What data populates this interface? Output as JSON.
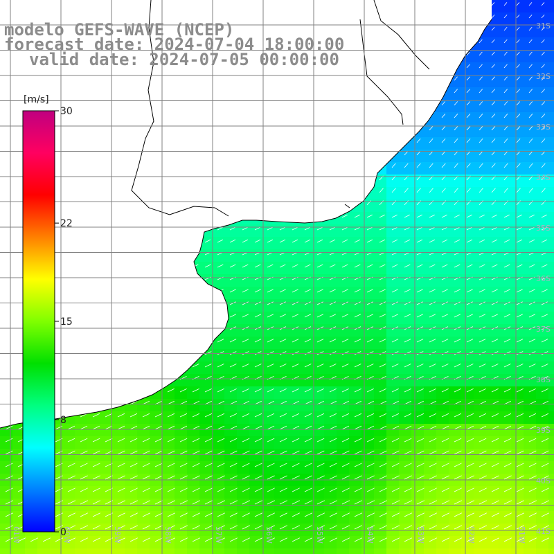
{
  "title": {
    "line1": "modelo GEFS-WAVE (NCEP)",
    "line2": "forecast date: 2024-07-04 18:00:00",
    "line3": "valid date: 2024-07-05 00:00:00"
  },
  "colorbar": {
    "unit": "[m/s]",
    "ticks": [
      {
        "value": 30,
        "label": "30"
      },
      {
        "value": 22,
        "label": "22"
      },
      {
        "value": 15,
        "label": "15"
      },
      {
        "value": 8,
        "label": "8"
      },
      {
        "value": 0,
        "label": "0"
      }
    ],
    "min": 0,
    "max": 30,
    "colors": [
      "#0000ff",
      "#0080ff",
      "#00ffff",
      "#00ff80",
      "#00e000",
      "#80ff00",
      "#ffff00",
      "#ff8000",
      "#ff0000",
      "#ff0060",
      "#c00080"
    ]
  },
  "map": {
    "lon_range": [
      -62,
      -50
    ],
    "lat_range": [
      -41.5,
      -31.5
    ],
    "latitude_labels": [
      "31S",
      "32S",
      "33S",
      "34S",
      "35S",
      "36S",
      "37S",
      "38S",
      "39S",
      "40S",
      "41S"
    ],
    "longitude_labels": [
      "61W",
      "60W",
      "59W",
      "58W",
      "57W",
      "56W",
      "55W",
      "54W",
      "53W",
      "52W",
      "51W"
    ],
    "land_color": "#ffffff",
    "grid_color": "#808080",
    "coast_color": "#000000",
    "arrow_color": "#ffffff"
  }
}
